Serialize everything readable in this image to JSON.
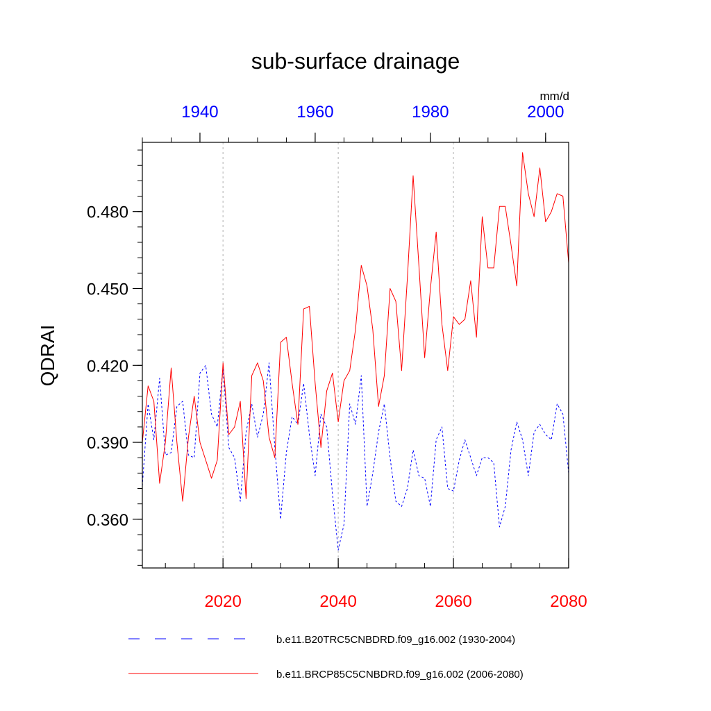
{
  "chart_data": {
    "type": "line",
    "title": "sub-surface drainage",
    "ylabel": "QDRAI",
    "units": "mm/d",
    "ylim": [
      0.341,
      0.507
    ],
    "yticks": [
      0.36,
      0.39,
      0.42,
      0.45,
      0.48
    ],
    "ytick_labels": [
      "0.360",
      "0.390",
      "0.420",
      "0.450",
      "0.480"
    ],
    "bottom_axis": {
      "range": [
        2006,
        2080
      ],
      "ticks": [
        2020,
        2040,
        2060,
        2080
      ],
      "tick_labels": [
        "2020",
        "2040",
        "2060",
        "2080"
      ],
      "color": "#ff0000"
    },
    "top_axis": {
      "range": [
        1930,
        2004
      ],
      "ticks": [
        1940,
        1960,
        1980,
        2000
      ],
      "tick_labels": [
        "1940",
        "1960",
        "1980",
        "2000"
      ],
      "color": "#0000ff"
    },
    "vertical_gridlines_at": [
      2020,
      2040,
      2060
    ],
    "legend_position": "bottom",
    "series": [
      {
        "name": "b.e11.B20TRC5CNBDRD.f09_g16.002 (1930-2004)",
        "axis": "top",
        "color": "#0000ff",
        "style": "dashed",
        "x": [
          1930,
          1931,
          1932,
          1933,
          1934,
          1935,
          1936,
          1937,
          1938,
          1939,
          1940,
          1941,
          1942,
          1943,
          1944,
          1945,
          1946,
          1947,
          1948,
          1949,
          1950,
          1951,
          1952,
          1953,
          1954,
          1955,
          1956,
          1957,
          1958,
          1959,
          1960,
          1961,
          1962,
          1963,
          1964,
          1965,
          1966,
          1967,
          1968,
          1969,
          1970,
          1971,
          1972,
          1973,
          1974,
          1975,
          1976,
          1977,
          1978,
          1979,
          1980,
          1981,
          1982,
          1983,
          1984,
          1985,
          1986,
          1987,
          1988,
          1989,
          1990,
          1991,
          1992,
          1993,
          1994,
          1995,
          1996,
          1997,
          1998,
          1999,
          2000,
          2001,
          2002,
          2003,
          2004
        ],
        "values": [
          0.373,
          0.405,
          0.391,
          0.415,
          0.385,
          0.386,
          0.404,
          0.406,
          0.385,
          0.384,
          0.417,
          0.42,
          0.401,
          0.396,
          0.419,
          0.388,
          0.384,
          0.367,
          0.394,
          0.405,
          0.392,
          0.401,
          0.421,
          0.388,
          0.36,
          0.386,
          0.4,
          0.397,
          0.413,
          0.393,
          0.377,
          0.401,
          0.396,
          0.37,
          0.348,
          0.358,
          0.405,
          0.397,
          0.416,
          0.365,
          0.378,
          0.394,
          0.405,
          0.384,
          0.367,
          0.365,
          0.372,
          0.387,
          0.377,
          0.376,
          0.365,
          0.391,
          0.396,
          0.372,
          0.371,
          0.383,
          0.391,
          0.384,
          0.377,
          0.384,
          0.384,
          0.382,
          0.357,
          0.365,
          0.387,
          0.398,
          0.391,
          0.377,
          0.394,
          0.397,
          0.393,
          0.391,
          0.405,
          0.401,
          0.378
        ]
      },
      {
        "name": "b.e11.BRCP85C5CNBDRD.f09_g16.002 (2006-2080)",
        "axis": "bottom",
        "color": "#ff0000",
        "style": "solid",
        "x": [
          2006,
          2007,
          2008,
          2009,
          2010,
          2011,
          2012,
          2013,
          2014,
          2015,
          2016,
          2017,
          2018,
          2019,
          2020,
          2021,
          2022,
          2023,
          2024,
          2025,
          2026,
          2027,
          2028,
          2029,
          2030,
          2031,
          2032,
          2033,
          2034,
          2035,
          2036,
          2037,
          2038,
          2039,
          2040,
          2041,
          2042,
          2043,
          2044,
          2045,
          2046,
          2047,
          2048,
          2049,
          2050,
          2051,
          2052,
          2053,
          2054,
          2055,
          2056,
          2057,
          2058,
          2059,
          2060,
          2061,
          2062,
          2063,
          2064,
          2065,
          2066,
          2067,
          2068,
          2069,
          2070,
          2071,
          2072,
          2073,
          2074,
          2075,
          2076,
          2077,
          2078,
          2079,
          2080
        ],
        "values": [
          0.39,
          0.412,
          0.406,
          0.374,
          0.39,
          0.419,
          0.39,
          0.367,
          0.392,
          0.408,
          0.39,
          0.383,
          0.376,
          0.383,
          0.421,
          0.393,
          0.396,
          0.406,
          0.368,
          0.416,
          0.421,
          0.414,
          0.392,
          0.384,
          0.429,
          0.431,
          0.413,
          0.397,
          0.442,
          0.443,
          0.413,
          0.388,
          0.41,
          0.417,
          0.398,
          0.414,
          0.418,
          0.434,
          0.459,
          0.451,
          0.434,
          0.404,
          0.416,
          0.45,
          0.445,
          0.418,
          0.454,
          0.494,
          0.459,
          0.423,
          0.45,
          0.472,
          0.436,
          0.418,
          0.439,
          0.436,
          0.438,
          0.453,
          0.431,
          0.478,
          0.458,
          0.458,
          0.482,
          0.482,
          0.467,
          0.451,
          0.503,
          0.487,
          0.478,
          0.497,
          0.476,
          0.48,
          0.487,
          0.486,
          0.46
        ]
      }
    ]
  }
}
